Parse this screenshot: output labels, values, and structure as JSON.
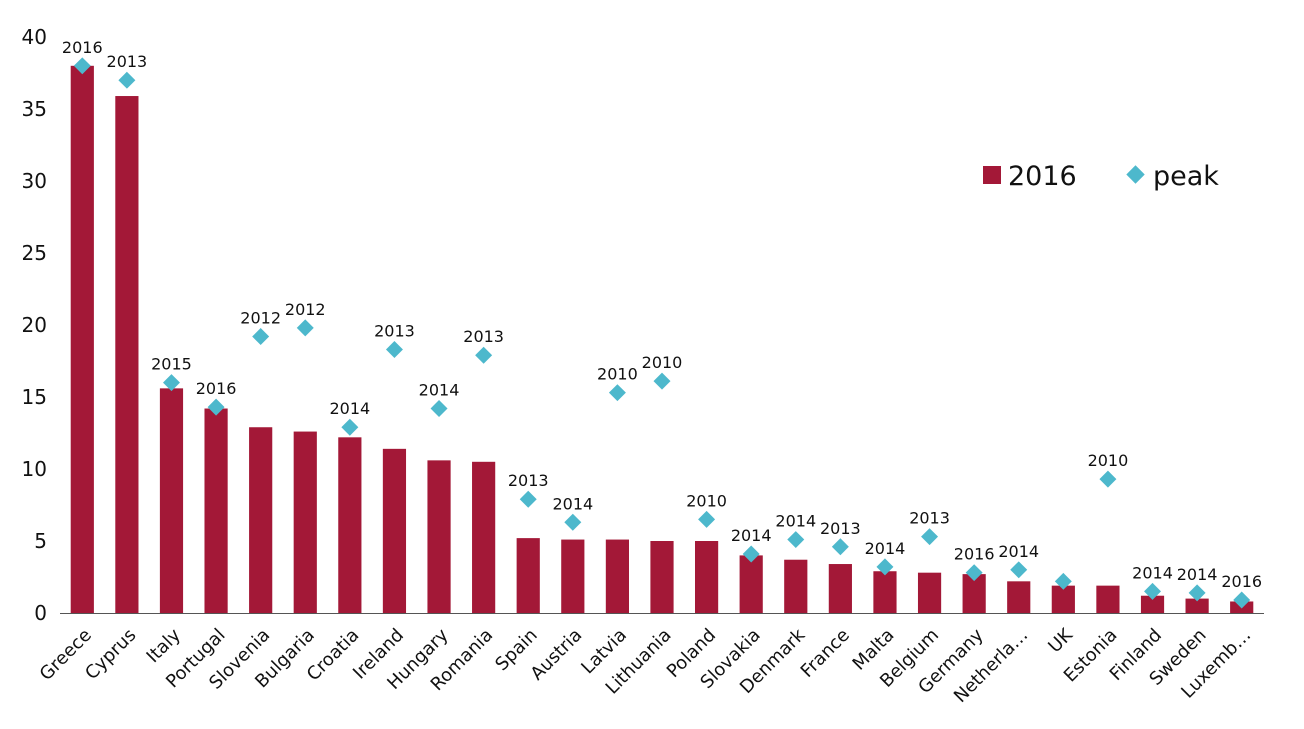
{
  "chart_data": {
    "type": "bar",
    "categories": [
      "Greece",
      "Cyprus",
      "Italy",
      "Portugal",
      "Slovenia",
      "Bulgaria",
      "Croatia",
      "Ireland",
      "Hungary",
      "Romania",
      "Spain",
      "Austria",
      "Latvia",
      "Lithuania",
      "Poland",
      "Slovakia",
      "Denmark",
      "France",
      "Malta",
      "Belgium",
      "Germany",
      "Netherla…",
      "UK",
      "Estonia",
      "Finland",
      "Sweden",
      "Luxemb…"
    ],
    "series": [
      {
        "name": "2016",
        "type": "bar",
        "color": "#a31837",
        "values": [
          38.0,
          35.9,
          15.6,
          14.2,
          12.9,
          12.6,
          12.2,
          11.4,
          10.6,
          10.5,
          5.2,
          5.1,
          5.1,
          5.0,
          5.0,
          4.0,
          3.7,
          3.4,
          2.9,
          2.8,
          2.7,
          2.2,
          1.9,
          1.9,
          1.2,
          1.0,
          0.8
        ]
      },
      {
        "name": "peak",
        "type": "scatter",
        "color": "#4db8cc",
        "values": [
          38.0,
          37.0,
          16.0,
          14.3,
          19.2,
          19.8,
          12.9,
          18.3,
          14.2,
          17.9,
          7.9,
          6.3,
          15.3,
          16.1,
          6.5,
          4.1,
          5.1,
          4.6,
          3.2,
          5.3,
          2.8,
          3.0,
          2.2,
          9.3,
          1.5,
          1.4,
          0.9
        ],
        "labels": [
          "2016",
          "2013",
          "2015",
          "2016",
          "2012",
          "2012",
          "2014",
          "2013",
          "2014",
          "2013",
          "2013",
          "2014",
          "2010",
          "2010",
          "2010",
          "2014",
          "2014",
          "2013",
          "2014",
          "2013",
          "2016",
          "2014",
          "",
          "2010",
          "2014",
          "2014",
          "2016"
        ]
      }
    ],
    "y_ticks": [
      "0",
      "5",
      "10",
      "15",
      "20",
      "25",
      "30",
      "35",
      "40"
    ],
    "ylim": [
      0,
      40
    ],
    "grid": false,
    "legend_position": "top-right"
  }
}
